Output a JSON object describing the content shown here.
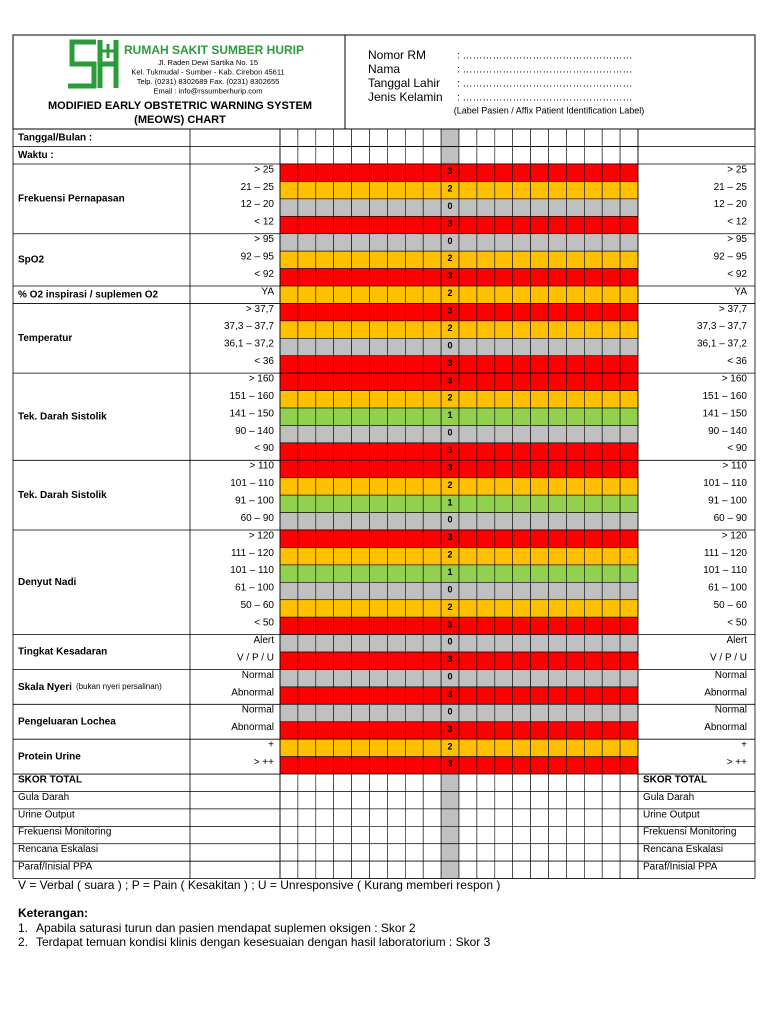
{
  "header": {
    "hospital_name": "RUMAH SAKIT SUMBER HURIP",
    "address": [
      "Jl. Raden Dewi Sartika No. 15",
      "Kel. Tukmudal - Sumber - Kab. Cirebon 45611",
      "Telp. (0231) 8302689 Fax. (0231) 8302655",
      "Email : info@rssumberhurip.com"
    ],
    "title": [
      "MODIFIED EARLY OBSTETRIC WARNING SYSTEM",
      "(MEOWS) CHART"
    ],
    "patient_fields": [
      {
        "label": "Nomor RM",
        "value": ":  ……………………………………………"
      },
      {
        "label": "Nama",
        "value": ":  ……………………………………………"
      },
      {
        "label": "Tanggal Lahir",
        "value": ":  ……………………………………………"
      },
      {
        "label": "Jenis Kelamin",
        "value": ":  ……………………………………………"
      }
    ],
    "patient_note": "(Label Pasien / Affix Patient Identification Label)"
  },
  "table": {
    "date_row": "Tanggal/Bulan :",
    "time_row": "Waktu :",
    "score_colors": {
      "0": "#c0c0c0",
      "1": "#92d050",
      "2": "#ffc000",
      "3": "#ff0000"
    },
    "groups": [
      {
        "label": "Frekuensi Pernapasan",
        "rows": [
          {
            "range": "> 25",
            "score": 3
          },
          {
            "range": "21 – 25",
            "score": 2
          },
          {
            "range": "12 – 20",
            "score": 0
          },
          {
            "range": "< 12",
            "score": 3
          }
        ]
      },
      {
        "label": "SpO2",
        "rows": [
          {
            "range": "> 95",
            "score": 0
          },
          {
            "range": "92 – 95",
            "score": 2
          },
          {
            "range": "< 92",
            "score": 3
          }
        ]
      },
      {
        "label": "% O2 inspirasi / suplemen O2",
        "rows": [
          {
            "range": "YA",
            "score": 2
          }
        ]
      },
      {
        "label": "Temperatur",
        "rows": [
          {
            "range": "> 37,7",
            "score": 3
          },
          {
            "range": "37,3 – 37,7",
            "score": 2
          },
          {
            "range": "36,1 – 37,2",
            "score": 0
          },
          {
            "range": "< 36",
            "score": 3
          }
        ]
      },
      {
        "label": "Tek. Darah Sistolik",
        "rows": [
          {
            "range": "> 160",
            "score": 3
          },
          {
            "range": "151 – 160",
            "score": 2
          },
          {
            "range": "141 – 150",
            "score": 1
          },
          {
            "range": "90 – 140",
            "score": 0
          },
          {
            "range": "< 90",
            "score": 3
          }
        ]
      },
      {
        "label": "Tek. Darah Sistolik",
        "rows": [
          {
            "range": "> 110",
            "score": 3
          },
          {
            "range": "101 – 110",
            "score": 2
          },
          {
            "range": "91 – 100",
            "score": 1
          },
          {
            "range": "60 – 90",
            "score": 0
          }
        ]
      },
      {
        "label": "Denyut Nadi",
        "rows": [
          {
            "range": "> 120",
            "score": 3
          },
          {
            "range": "111 –  120",
            "score": 2
          },
          {
            "range": "101 –  110",
            "score": 1
          },
          {
            "range": "61 – 100",
            "score": 0
          },
          {
            "range": "50 – 60",
            "score": 2
          },
          {
            "range": "< 50",
            "score": 3
          }
        ]
      },
      {
        "label": "Tingkat Kesadaran",
        "rows": [
          {
            "range": "Alert",
            "score": 0
          },
          {
            "range": "V / P / U",
            "score": 3
          }
        ]
      },
      {
        "label": "Skala Nyeri",
        "note": "(bukan nyeri persalinan)",
        "rows": [
          {
            "range": "Normal",
            "score": 0
          },
          {
            "range": "Abnormal",
            "score": 3
          }
        ]
      },
      {
        "label": "Pengeluaran Lochea",
        "rows": [
          {
            "range": "Normal",
            "score": 0
          },
          {
            "range": "Abnormal",
            "score": 3
          }
        ]
      },
      {
        "label": "Protein Urine",
        "rows": [
          {
            "range": "+",
            "score": 2
          },
          {
            "range": "> ++",
            "score": 3
          }
        ]
      }
    ],
    "summary_rows": [
      "SKOR TOTAL",
      "Gula Darah",
      "Urine Output",
      "Frekuensi Monitoring",
      "Rencana Eskalasi",
      "Paraf/Inisial PPA"
    ]
  },
  "footer": {
    "legend": "V = Verbal ( suara ) ; P = Pain ( Kesakitan ) ; U = Unresponsive ( Kurang memberi respon )",
    "notes_title": "Keterangan:",
    "notes": [
      {
        "number": "1.",
        "text": "Apabila saturasi turun dan pasien mendapat suplemen oksigen : Skor 2"
      },
      {
        "number": "2.",
        "text": "Terdapat temuan kondisi klinis dengan kesesuaian dengan hasil laboratorium : Skor 3"
      }
    ]
  }
}
